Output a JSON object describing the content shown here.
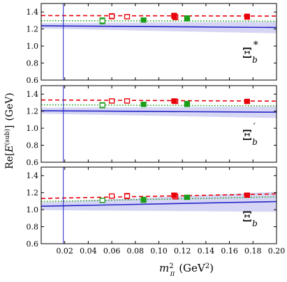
{
  "chart_data": [
    {
      "type": "scatter",
      "panel_label": "Ξ*_b",
      "label_base": "Ξ",
      "label_sub": "b",
      "label_sup": "*",
      "ylim": [
        0.6,
        1.5
      ],
      "yticks": [
        "0.6",
        "0.8",
        "1.0",
        "1.2",
        "1.4"
      ],
      "dashed_fit": {
        "color": "#e8000b",
        "values": [
          1.358,
          1.352
        ]
      },
      "dotted_fit": {
        "color": "#1a9e1a",
        "values": [
          1.298,
          1.292
        ]
      },
      "band_fit": {
        "color": "#2323c8",
        "center": [
          1.238,
          1.218
        ],
        "lower": [
          1.205,
          1.15
        ],
        "upper": [
          1.27,
          1.285
        ]
      },
      "series": [
        {
          "style": "green-open",
          "points": [
            [
              0.052,
              1.295,
              0.035
            ]
          ]
        },
        {
          "style": "red-open",
          "points": [
            [
              0.06,
              1.35,
              0.03
            ],
            [
              0.073,
              1.345,
              0.025
            ],
            [
              0.114,
              1.34,
              0.03
            ]
          ]
        },
        {
          "style": "green-filled",
          "points": [
            [
              0.087,
              1.305,
              0.025
            ],
            [
              0.124,
              1.325,
              0.03
            ]
          ]
        },
        {
          "style": "red-filled",
          "points": [
            [
              0.113,
              1.355,
              0.03
            ],
            [
              0.175,
              1.345,
              0.03
            ]
          ]
        }
      ]
    },
    {
      "type": "scatter",
      "panel_label": "Ξ'_b",
      "label_base": "Ξ",
      "label_sub": "b",
      "label_sup": "′",
      "ylim": [
        0.6,
        1.5
      ],
      "yticks": [
        "0.6",
        "0.8",
        "1.0",
        "1.2",
        "1.4"
      ],
      "dashed_fit": {
        "color": "#e8000b",
        "values": [
          1.332,
          1.318
        ]
      },
      "dotted_fit": {
        "color": "#1a9e1a",
        "values": [
          1.275,
          1.262
        ]
      },
      "band_fit": {
        "color": "#2323c8",
        "center": [
          1.205,
          1.188
        ],
        "lower": [
          1.17,
          1.12
        ],
        "upper": [
          1.24,
          1.255
        ]
      },
      "series": [
        {
          "style": "green-open",
          "points": [
            [
              0.052,
              1.27,
              0.03
            ]
          ]
        },
        {
          "style": "red-open",
          "points": [
            [
              0.06,
              1.32,
              0.025
            ],
            [
              0.073,
              1.32,
              0.025
            ],
            [
              0.114,
              1.315,
              0.025
            ]
          ]
        },
        {
          "style": "green-filled",
          "points": [
            [
              0.087,
              1.28,
              0.025
            ],
            [
              0.124,
              1.285,
              0.03
            ]
          ]
        },
        {
          "style": "red-filled",
          "points": [
            [
              0.113,
              1.32,
              0.025
            ],
            [
              0.175,
              1.315,
              0.025
            ]
          ]
        }
      ]
    },
    {
      "type": "scatter",
      "panel_label": "Ξ_b",
      "label_base": "Ξ",
      "label_sub": "b",
      "label_sup": "",
      "ylim": [
        0.6,
        1.5
      ],
      "yticks": [
        "0.6",
        "0.8",
        "1.0",
        "1.2",
        "1.4"
      ],
      "dashed_fit": {
        "color": "#e8000b",
        "values": [
          1.132,
          1.185
        ]
      },
      "dotted_fit": {
        "color": "#1a9e1a",
        "values": [
          1.095,
          1.15
        ]
      },
      "band_fit": {
        "color": "#2323c8",
        "center": [
          1.04,
          1.095
        ],
        "lower": [
          0.995,
          0.975
        ],
        "upper": [
          1.085,
          1.21
        ]
      },
      "series": [
        {
          "style": "green-open",
          "points": [
            [
              0.052,
              1.11,
              0.025
            ]
          ]
        },
        {
          "style": "red-open",
          "points": [
            [
              0.06,
              1.16,
              0.025
            ],
            [
              0.073,
              1.16,
              0.03
            ],
            [
              0.114,
              1.155,
              0.03
            ]
          ]
        },
        {
          "style": "green-filled",
          "points": [
            [
              0.087,
              1.115,
              0.03
            ],
            [
              0.124,
              1.145,
              0.025
            ]
          ]
        },
        {
          "style": "red-filled",
          "points": [
            [
              0.113,
              1.17,
              0.025
            ],
            [
              0.175,
              1.17,
              0.025
            ]
          ]
        }
      ]
    }
  ],
  "shared": {
    "x_range": [
      0.0,
      0.2
    ],
    "xticks": [
      "0.02",
      "0.04",
      "0.06",
      "0.08",
      "0.10",
      "0.12",
      "0.14",
      "0.16",
      "0.18",
      "0.20"
    ],
    "xtick_values": [
      0.02,
      0.04,
      0.06,
      0.08,
      0.1,
      0.12,
      0.14,
      0.16,
      0.18,
      0.2
    ],
    "vline_x": 0.0188,
    "xlabel_main": "m",
    "xlabel_sub": "π",
    "xlabel_sup": "2",
    "xlabel_unit": "(GeV",
    "xlabel_unit_sup": "2",
    "xlabel_unit_close": ")",
    "ylabel_main": "Re[",
    "ylabel_E": "E",
    "ylabel_sup": "(sub)",
    "ylabel_close": "]",
    "ylabel_unit": "(GeV)",
    "colors": {
      "red": "#e8000b",
      "green": "#1a9e1a",
      "blue": "#2323c8",
      "band": "#c8c8f0"
    }
  }
}
